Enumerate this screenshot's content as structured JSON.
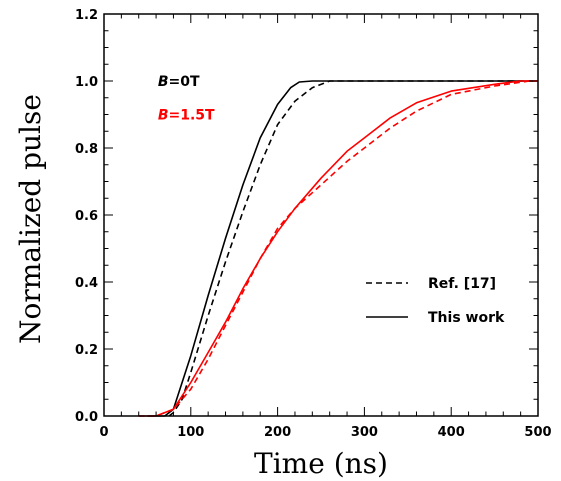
{
  "chart_data": {
    "type": "line",
    "xlabel": "Time (ns)",
    "ylabel": "Normalized pulse",
    "xlim": [
      0,
      500
    ],
    "ylim": [
      0,
      1.2
    ],
    "x_ticks": [
      "0",
      "100",
      "200",
      "300",
      "400",
      "500"
    ],
    "y_ticks": [
      "0.0",
      "0.2",
      "0.4",
      "0.6",
      "0.8",
      "1.0",
      "1.2"
    ],
    "grid": false,
    "legend_position": "lower-right",
    "legend": [
      {
        "label": "Ref. [17]",
        "dash": "dashed"
      },
      {
        "label": "This work",
        "dash": "solid"
      }
    ],
    "annotations": [
      {
        "symbol": "B",
        "value": "=0T",
        "color": "#000000",
        "x": 62,
        "y": 1.0
      },
      {
        "symbol": "B",
        "value": "=1.5T",
        "color": "#ff0000",
        "x": 62,
        "y": 0.9
      }
    ],
    "series": [
      {
        "group": "B=0T",
        "style": "solid",
        "color": "#000000",
        "points": [
          [
            50,
            0
          ],
          [
            70,
            0
          ],
          [
            80,
            0.02
          ],
          [
            100,
            0.18
          ],
          [
            120,
            0.36
          ],
          [
            140,
            0.53
          ],
          [
            160,
            0.69
          ],
          [
            180,
            0.83
          ],
          [
            200,
            0.93
          ],
          [
            215,
            0.98
          ],
          [
            225,
            0.997
          ],
          [
            240,
            1.0
          ],
          [
            500,
            1.0
          ]
        ]
      },
      {
        "group": "B=0T",
        "style": "dashed",
        "color": "#000000",
        "points": [
          [
            75,
            0
          ],
          [
            80,
            0.01
          ],
          [
            90,
            0.05
          ],
          [
            100,
            0.13
          ],
          [
            120,
            0.3
          ],
          [
            140,
            0.46
          ],
          [
            160,
            0.61
          ],
          [
            180,
            0.75
          ],
          [
            200,
            0.87
          ],
          [
            220,
            0.94
          ],
          [
            240,
            0.98
          ],
          [
            260,
            1.0
          ],
          [
            500,
            1.0
          ]
        ]
      },
      {
        "group": "B=1.5T",
        "style": "solid",
        "color": "#ff0000",
        "points": [
          [
            40,
            0
          ],
          [
            60,
            0
          ],
          [
            80,
            0.02
          ],
          [
            100,
            0.1
          ],
          [
            120,
            0.19
          ],
          [
            140,
            0.28
          ],
          [
            160,
            0.38
          ],
          [
            180,
            0.47
          ],
          [
            200,
            0.55
          ],
          [
            220,
            0.62
          ],
          [
            250,
            0.71
          ],
          [
            280,
            0.79
          ],
          [
            300,
            0.83
          ],
          [
            330,
            0.89
          ],
          [
            360,
            0.935
          ],
          [
            400,
            0.97
          ],
          [
            450,
            0.99
          ],
          [
            480,
            1.0
          ],
          [
            500,
            1.0
          ]
        ]
      },
      {
        "group": "B=1.5T",
        "style": "dashed",
        "color": "#ff0000",
        "points": [
          [
            40,
            0
          ],
          [
            60,
            0
          ],
          [
            80,
            0.02
          ],
          [
            100,
            0.08
          ],
          [
            120,
            0.17
          ],
          [
            140,
            0.27
          ],
          [
            160,
            0.37
          ],
          [
            180,
            0.47
          ],
          [
            200,
            0.56
          ],
          [
            220,
            0.62
          ],
          [
            250,
            0.69
          ],
          [
            280,
            0.76
          ],
          [
            300,
            0.8
          ],
          [
            330,
            0.86
          ],
          [
            360,
            0.91
          ],
          [
            400,
            0.96
          ],
          [
            450,
            0.985
          ],
          [
            490,
            1.0
          ],
          [
            500,
            1.0
          ]
        ]
      }
    ]
  }
}
